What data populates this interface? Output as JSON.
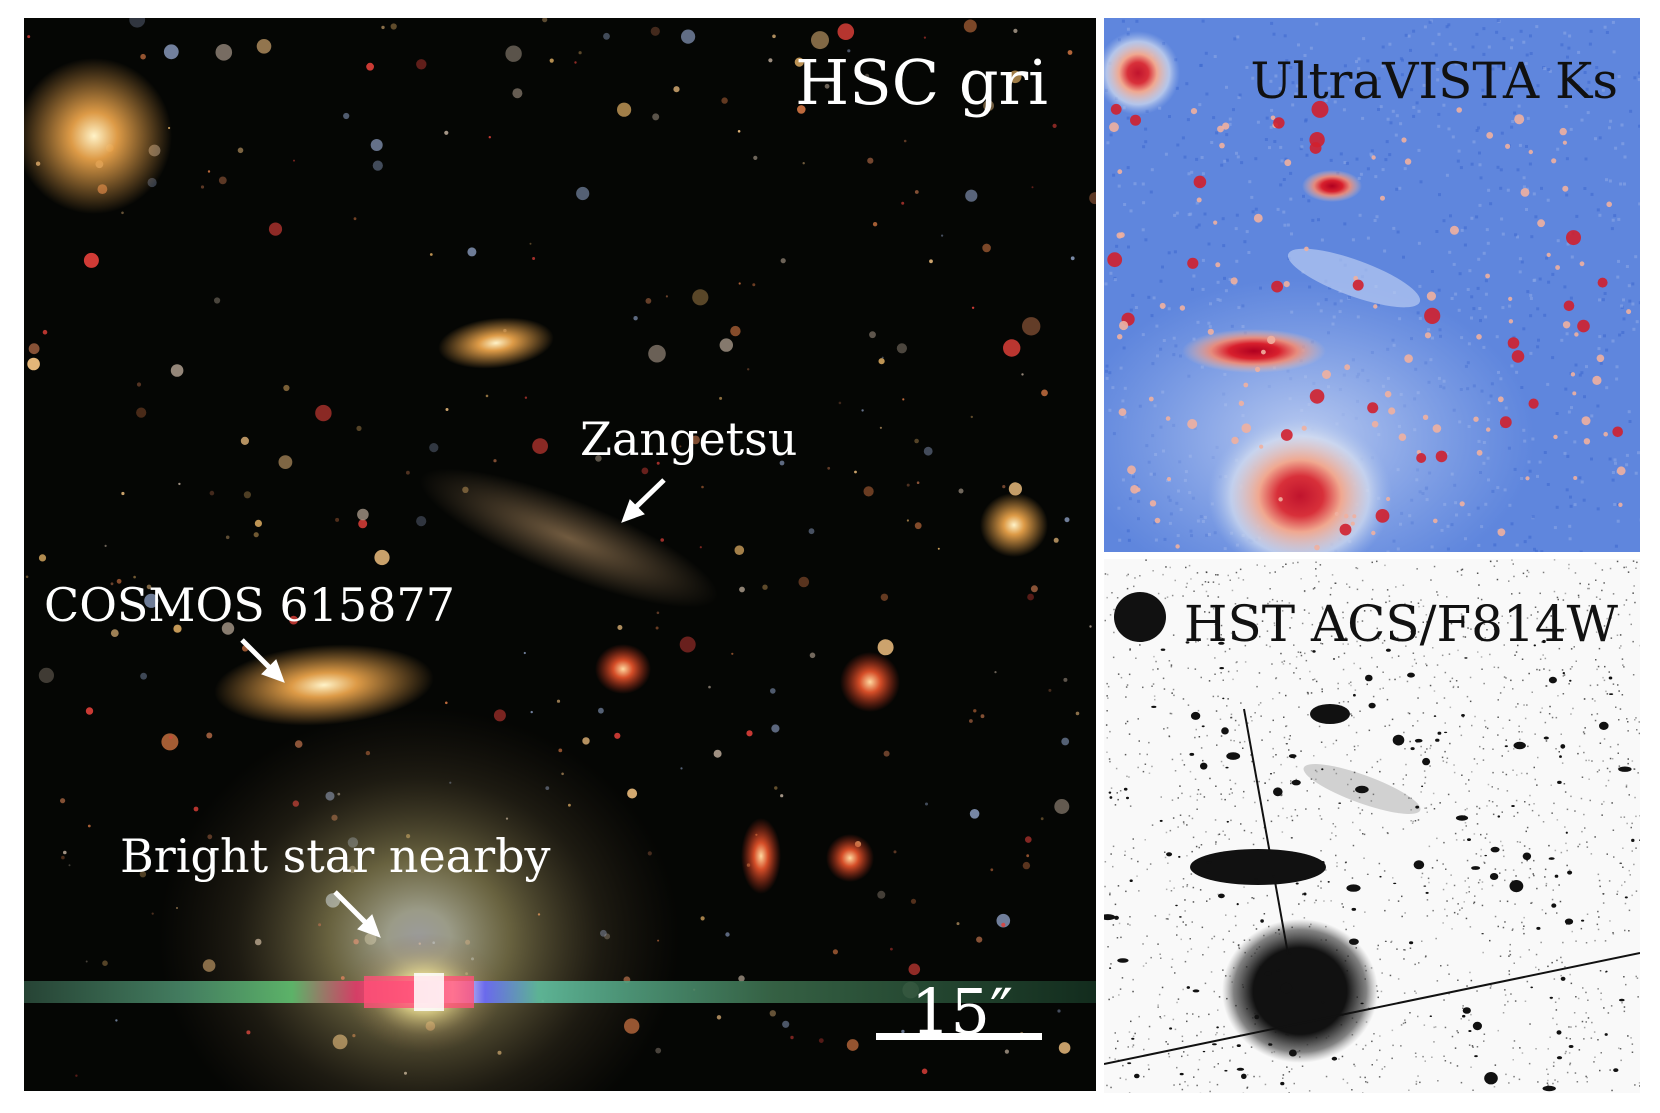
{
  "panels": {
    "main": {
      "title": "HSC gri"
    },
    "ks": {
      "title": "UltraVISTA Ks"
    },
    "hst": {
      "title": "HST ACS/F814W"
    }
  },
  "annotations": {
    "zangetsu": "Zangetsu",
    "cosmos": "COSMOS 615877",
    "star": "Bright star nearby"
  },
  "scale_bar": {
    "label": "15″"
  },
  "colors": {
    "main_background": "#050604",
    "ks_background": "#5a82dd",
    "hst_background": "#f9f9f9",
    "galaxy_orange": "#e8a24a",
    "ks_source_red": "#c0142d",
    "hst_source_black": "#111111"
  }
}
